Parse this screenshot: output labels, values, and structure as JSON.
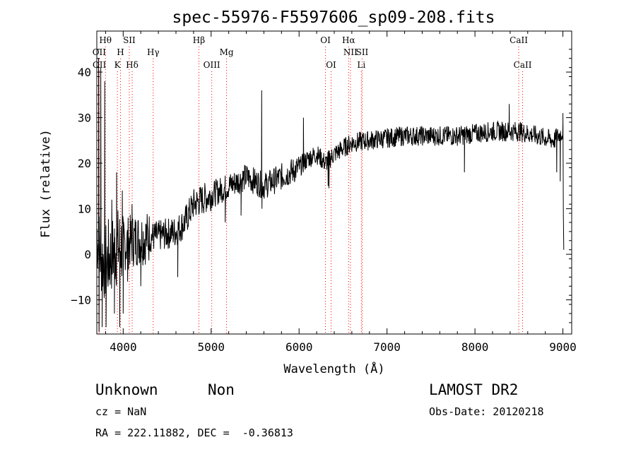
{
  "chart_data": {
    "type": "line",
    "title": "spec-55976-F5597606_sp09-208.fits",
    "xlabel": "Wavelength (Å)",
    "ylabel": "Flux (relative)",
    "xlim": [
      3700,
      9100
    ],
    "ylim": [
      -17.5,
      49
    ],
    "xticks": [
      4000,
      5000,
      6000,
      7000,
      8000,
      9000
    ],
    "yticks": [
      -10,
      0,
      10,
      20,
      30,
      40
    ],
    "grid": false,
    "line_color": "#000000",
    "marker_color": "#ff0000",
    "lines": [
      {
        "label": "Hθ",
        "wavelength": 3798,
        "row": 0
      },
      {
        "label": "OII",
        "wavelength": 3727,
        "row": 1
      },
      {
        "label": "OII",
        "wavelength": 3729,
        "row": 2
      },
      {
        "label": "SII",
        "wavelength": 4069,
        "row": 0
      },
      {
        "label": "H",
        "wavelength": 3969,
        "row": 1
      },
      {
        "label": "K",
        "wavelength": 3934,
        "row": 2
      },
      {
        "label": "Hδ",
        "wavelength": 4102,
        "row": 2
      },
      {
        "label": "Hγ",
        "wavelength": 4341,
        "row": 1
      },
      {
        "label": "Hβ",
        "wavelength": 4861,
        "row": 0
      },
      {
        "label": "OIII",
        "wavelength": 5007,
        "row": 2
      },
      {
        "label": "Mg",
        "wavelength": 5175,
        "row": 1
      },
      {
        "label": "OI",
        "wavelength": 6300,
        "row": 0
      },
      {
        "label": "OI",
        "wavelength": 6364,
        "row": 2
      },
      {
        "label": "Hα",
        "wavelength": 6563,
        "row": 0
      },
      {
        "label": "NII",
        "wavelength": 6584,
        "row": 1
      },
      {
        "label": "Li",
        "wavelength": 6708,
        "row": 2
      },
      {
        "label": "SII",
        "wavelength": 6717,
        "row": 1
      },
      {
        "label": "CaII",
        "wavelength": 8498,
        "row": 0
      },
      {
        "label": "CaII",
        "wavelength": 8542,
        "row": 2
      }
    ],
    "spectrum_anchors": [
      [
        3700,
        5
      ],
      [
        3740,
        0
      ],
      [
        3800,
        -2
      ],
      [
        3900,
        1
      ],
      [
        4000,
        2
      ],
      [
        4100,
        3
      ],
      [
        4200,
        3.5
      ],
      [
        4400,
        4
      ],
      [
        4600,
        5
      ],
      [
        4700,
        7
      ],
      [
        4800,
        11
      ],
      [
        5000,
        13
      ],
      [
        5200,
        15
      ],
      [
        5400,
        17
      ],
      [
        5600,
        15
      ],
      [
        5800,
        17
      ],
      [
        6000,
        19
      ],
      [
        6100,
        21
      ],
      [
        6200,
        22
      ],
      [
        6300,
        20
      ],
      [
        6400,
        22
      ],
      [
        6600,
        24.5
      ],
      [
        6800,
        25
      ],
      [
        7000,
        25.5
      ],
      [
        7200,
        26
      ],
      [
        7500,
        26
      ],
      [
        7800,
        26
      ],
      [
        8000,
        26.5
      ],
      [
        8200,
        27
      ],
      [
        8500,
        27
      ],
      [
        8700,
        26
      ],
      [
        8900,
        25
      ],
      [
        9000,
        27
      ],
      [
        9020,
        1
      ]
    ],
    "spikes": [
      [
        3720,
        43
      ],
      [
        3725,
        -17
      ],
      [
        3745,
        41
      ],
      [
        3760,
        -16
      ],
      [
        3790,
        38
      ],
      [
        3805,
        -16
      ],
      [
        3830,
        -5
      ],
      [
        3870,
        12
      ],
      [
        3900,
        -13
      ],
      [
        3925,
        18
      ],
      [
        3960,
        -16
      ],
      [
        3990,
        14
      ],
      [
        4000,
        -13
      ],
      [
        4050,
        -6
      ],
      [
        4100,
        11
      ],
      [
        4200,
        -7
      ],
      [
        4620,
        -5
      ],
      [
        5160,
        7
      ],
      [
        5340,
        8.5
      ],
      [
        5575,
        36
      ],
      [
        5578,
        10
      ],
      [
        6050,
        30
      ],
      [
        6330,
        15
      ],
      [
        6340,
        14.5
      ],
      [
        7880,
        18
      ],
      [
        8390,
        33
      ],
      [
        8930,
        18
      ],
      [
        8970,
        16
      ],
      [
        9000,
        31
      ]
    ]
  },
  "footer": {
    "object_class": "Unknown",
    "object_subclass": "Non",
    "survey": "LAMOST DR2",
    "redshift": "cz = NaN",
    "obs_date": "Obs-Date: 20120218",
    "coords": "RA = 222.11882, DEC =  -0.36813"
  }
}
